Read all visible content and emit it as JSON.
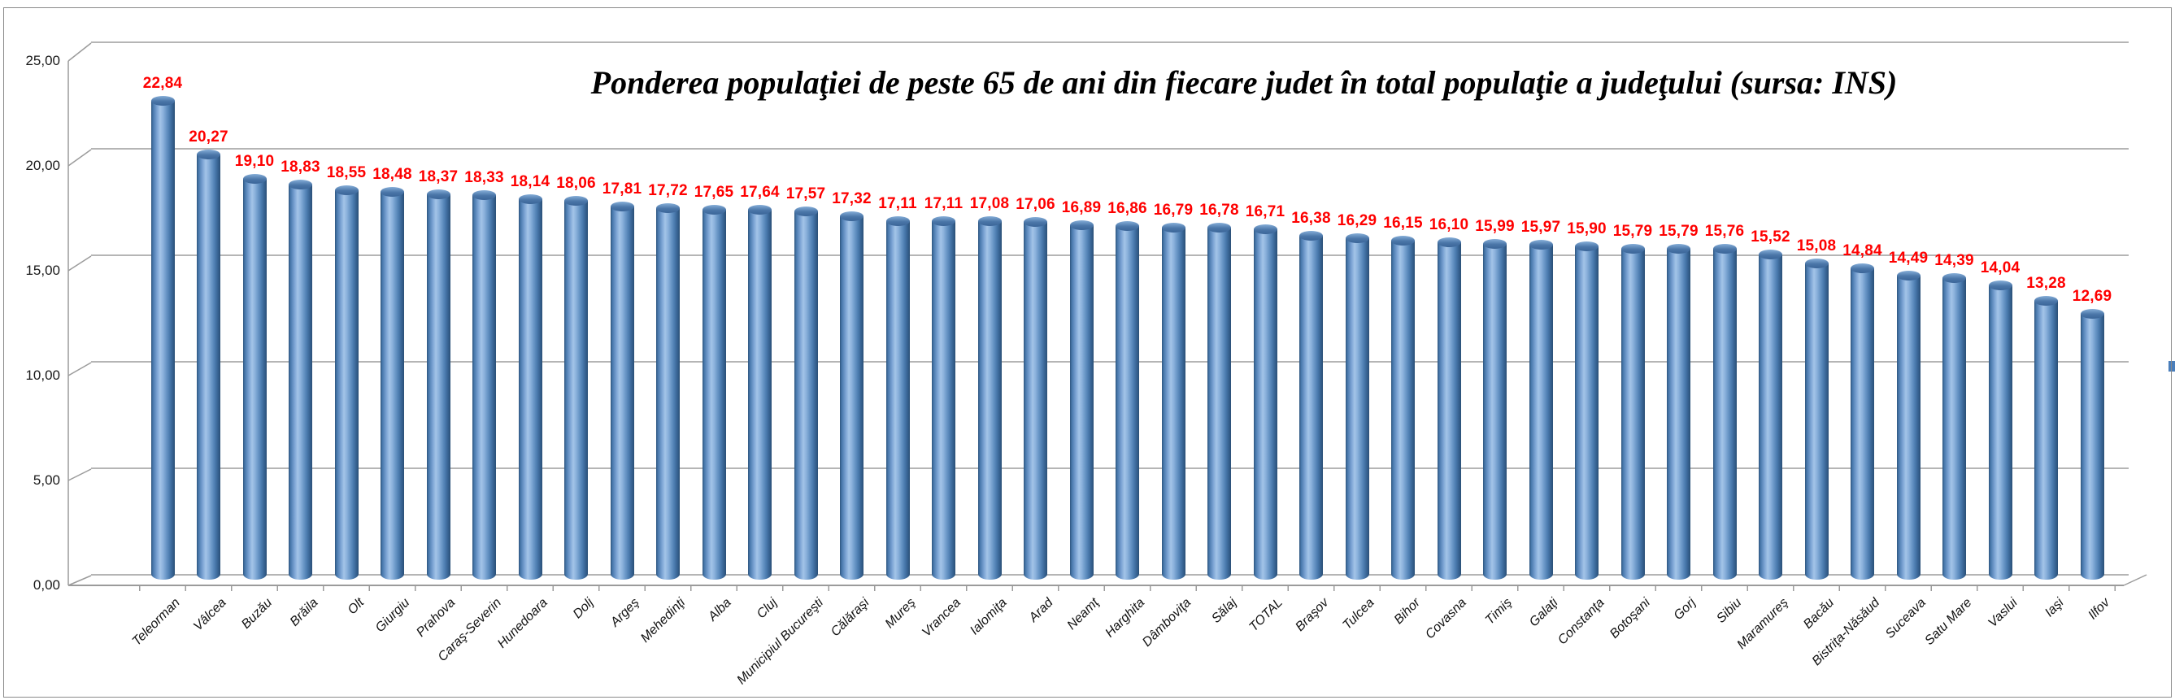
{
  "chart_data": {
    "type": "bar",
    "style": "3d-cylinder",
    "title": "Ponderea populaţiei de peste 65 de ani din fiecare judet în total populaţie a judeţului (sursa: INS)",
    "categories": [
      "Teleorman",
      "Vâlcea",
      "Buzău",
      "Brăila",
      "Olt",
      "Giurgiu",
      "Prahova",
      "Caraş-Severin",
      "Hunedoara",
      "Dolj",
      "Argeş",
      "Mehedinţi",
      "Alba",
      "Cluj",
      "Municipiul Bucureşti",
      "Călăraşi",
      "Mureş",
      "Vrancea",
      "Ialomiţa",
      "Arad",
      "Neamţ",
      "Harghita",
      "Dâmboviţa",
      "Sălaj",
      "TOTAL",
      "Braşov",
      "Tulcea",
      "Bihor",
      "Covasna",
      "Timiş",
      "Galaţi",
      "Constanţa",
      "Botoşani",
      "Gorj",
      "Sibiu",
      "Maramureş",
      "Bacău",
      "Bistriţa-Năsăud",
      "Suceava",
      "Satu Mare",
      "Vaslui",
      "Iaşi",
      "Ilfov"
    ],
    "values": [
      22.84,
      20.27,
      19.1,
      18.83,
      18.55,
      18.48,
      18.37,
      18.33,
      18.14,
      18.06,
      17.81,
      17.72,
      17.65,
      17.64,
      17.57,
      17.32,
      17.11,
      17.11,
      17.08,
      17.06,
      16.89,
      16.86,
      16.79,
      16.78,
      16.71,
      16.38,
      16.29,
      16.15,
      16.1,
      15.99,
      15.97,
      15.9,
      15.79,
      15.79,
      15.76,
      15.52,
      15.08,
      14.84,
      14.49,
      14.39,
      14.04,
      13.28,
      12.69
    ],
    "xlabel": "",
    "ylabel": "",
    "ylim": [
      0,
      25
    ],
    "axis": {
      "y_tick_labels": [
        "0,00",
        "5,00",
        "10,00",
        "15,00",
        "20,00",
        "25,00"
      ],
      "y_tick_values": [
        0,
        5,
        10,
        15,
        20,
        25
      ],
      "decimal_separator": ","
    },
    "grid": true,
    "legend_position": "right-edge",
    "colors": {
      "bar": "#4f81bd",
      "bar_edge_dark": "#2e567f",
      "value_label": "#fe0000",
      "gridline": "#b5b5b5",
      "axis_line": "#9b9b9b",
      "legend_marker": "#4a7ebb"
    }
  }
}
